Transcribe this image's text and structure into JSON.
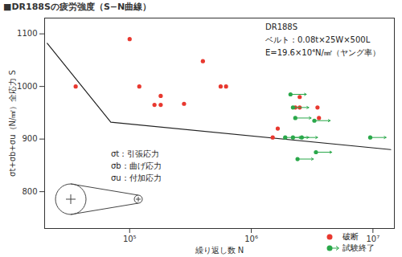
{
  "chart_data": {
    "type": "scatter",
    "title": "■DR188Sの疲労強度（S−N曲線）",
    "x_label": "繰り返し数 N",
    "y_label": "σt+σb+σu（N/㎟）全応力 S",
    "log": "x",
    "grid": false,
    "legend": "bottom-right",
    "xlim": [
      20000,
      15000000
    ],
    "xticks": [
      {
        "value": 100000,
        "label": "10⁵"
      },
      {
        "value": 1000000,
        "label": "10⁶"
      },
      {
        "value": 10000000,
        "label": "10⁷"
      }
    ],
    "ylim": [
      730,
      1130
    ],
    "yticks": [
      800,
      900,
      1000,
      1100
    ],
    "annotations": [
      "DR188S",
      "ベルト：0.08t×25W×500L",
      "E=19.6×10⁴N/㎟（ヤング率）"
    ],
    "stress_labels": [
      "σt：引張応力",
      "σb：曲げ応力",
      "σu：付加応力"
    ],
    "curve": {
      "color": "#222222",
      "x": [
        21000,
        70000,
        14000000
      ],
      "values": [
        1082,
        932,
        880
      ]
    },
    "series": [
      {
        "name": "破断",
        "color": "#e8382f",
        "marker": "circle",
        "x": [
          36000,
          100000,
          120000,
          160000,
          180000,
          180000,
          280000,
          400000,
          560000,
          620000,
          1500000,
          1650000,
          2300000,
          2500000,
          2500000,
          3500000,
          3600000
        ],
        "values": [
          1000,
          1090,
          1000,
          965,
          965,
          982,
          967,
          1048,
          1000,
          1000,
          903,
          920,
          960,
          980,
          960,
          960,
          940
        ]
      },
      {
        "name": "試験終了",
        "color": "#2aa84a",
        "marker": "circle_arrow",
        "x": [
          2100000,
          2200000,
          2300000,
          1900000,
          2200000,
          2600000,
          3300000,
          3400000,
          2400000,
          9500000
        ],
        "values": [
          985,
          960,
          940,
          903,
          903,
          903,
          935,
          875,
          862,
          903
        ]
      }
    ]
  }
}
